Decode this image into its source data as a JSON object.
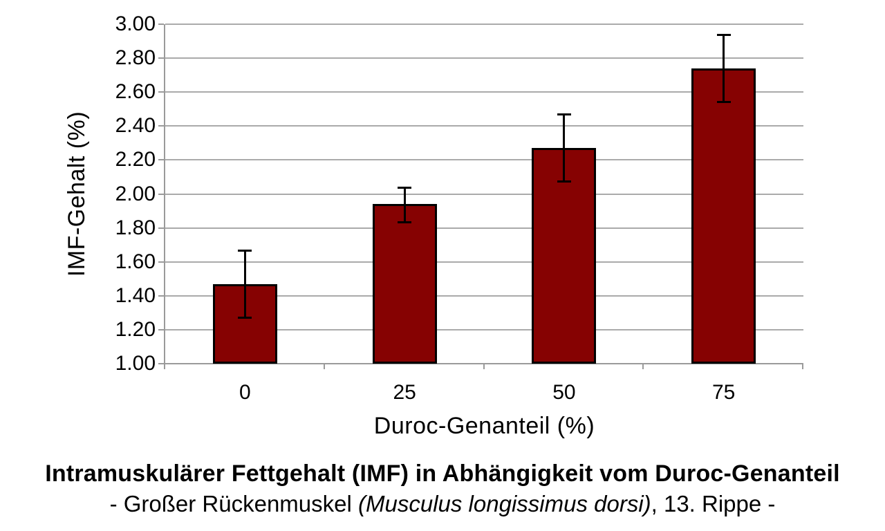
{
  "chart_data": {
    "type": "bar",
    "title": "",
    "categories": [
      "0",
      "25",
      "50",
      "75"
    ],
    "series": [
      {
        "name": "IMF-Gehalt",
        "values": [
          1.47,
          1.94,
          2.27,
          2.74
        ],
        "error_upper": [
          1.67,
          2.04,
          2.47,
          2.94
        ],
        "error_lower": [
          1.27,
          1.83,
          2.07,
          2.54
        ]
      }
    ],
    "xlabel": "Duroc-Genanteil (%)",
    "ylabel": "IMF-Gehalt (%)",
    "ylim": [
      1.0,
      3.0
    ],
    "ytick_step": 0.2,
    "ytick_labels": [
      "3.00",
      "2.80",
      "2.60",
      "2.40",
      "2.20",
      "2.00",
      "1.80",
      "1.60",
      "1.40",
      "1.20",
      "1.00"
    ],
    "grid": "horizontal-only",
    "legend": "none",
    "bar_color": "#860202",
    "bar_border_color": "#000000",
    "error_bar_color": "#000000",
    "gridline_color": "#aaaaaa",
    "axis_color": "#9a9a9a"
  },
  "caption": {
    "line1": "Intramuskulärer Fettgehalt (IMF) in Abhängigkeit vom Duroc-Genanteil",
    "line2_prefix": "- Großer Rückenmuskel ",
    "line2_italic": "(Musculus longissimus dorsi)",
    "line2_suffix": ", 13. Rippe -"
  }
}
